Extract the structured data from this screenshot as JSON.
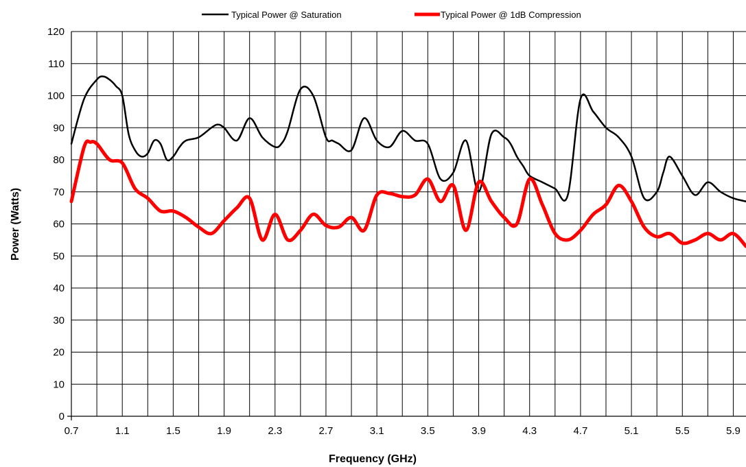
{
  "chart_data": {
    "type": "line",
    "title": "",
    "xlabel": "Frequency (GHz)",
    "ylabel": "Power (Watts)",
    "xlim": [
      0.7,
      6.0
    ],
    "ylim": [
      0,
      120
    ],
    "x_ticks": [
      "0.7",
      "1.1",
      "1.5",
      "1.9",
      "2.3",
      "2.7",
      "3.1",
      "3.5",
      "3.9",
      "4.3",
      "4.7",
      "5.1",
      "5.5",
      "5.9"
    ],
    "x_tick_values": [
      0.7,
      1.1,
      1.5,
      1.9,
      2.3,
      2.7,
      3.1,
      3.5,
      3.9,
      4.3,
      4.7,
      5.1,
      5.5,
      5.9
    ],
    "x_grid_step": 0.2,
    "y_ticks": [
      "0",
      "10",
      "20",
      "30",
      "40",
      "50",
      "60",
      "70",
      "80",
      "90",
      "100",
      "110",
      "120"
    ],
    "y_tick_values": [
      0,
      10,
      20,
      30,
      40,
      50,
      60,
      70,
      80,
      90,
      100,
      110,
      120
    ],
    "grid": true,
    "legend_position": "top",
    "series": [
      {
        "name": "Typical Power @ Saturation",
        "color": "#000000",
        "x": [
          0.7,
          0.8,
          0.9,
          0.95,
          1.0,
          1.05,
          1.1,
          1.15,
          1.2,
          1.25,
          1.3,
          1.35,
          1.4,
          1.45,
          1.5,
          1.55,
          1.6,
          1.7,
          1.8,
          1.85,
          1.9,
          2.0,
          2.1,
          2.2,
          2.3,
          2.35,
          2.4,
          2.5,
          2.6,
          2.7,
          2.75,
          2.8,
          2.9,
          3.0,
          3.1,
          3.2,
          3.3,
          3.4,
          3.5,
          3.6,
          3.7,
          3.8,
          3.9,
          4.0,
          4.1,
          4.15,
          4.2,
          4.25,
          4.3,
          4.4,
          4.5,
          4.6,
          4.7,
          4.8,
          4.9,
          5.0,
          5.1,
          5.2,
          5.3,
          5.35,
          5.4,
          5.5,
          5.6,
          5.7,
          5.8,
          5.9,
          6.0
        ],
        "y": [
          85,
          99,
          105,
          106,
          105,
          103,
          100,
          88,
          83,
          81,
          82,
          86,
          85,
          80,
          81,
          84,
          86,
          87,
          90,
          91,
          90,
          86,
          93,
          87,
          84,
          85,
          89,
          102,
          100,
          87,
          86,
          85,
          83,
          93,
          86,
          84,
          89,
          86,
          85,
          74,
          76,
          86,
          70,
          88,
          87,
          85,
          81,
          78,
          75,
          73,
          71,
          69,
          99,
          95,
          90,
          87,
          81,
          68,
          70,
          76,
          81,
          75,
          69,
          73,
          70,
          68,
          67
        ]
      },
      {
        "name": "Typical Power @ 1dB Compression",
        "color": "#ff0000",
        "x": [
          0.7,
          0.8,
          0.85,
          0.9,
          1.0,
          1.1,
          1.2,
          1.3,
          1.4,
          1.5,
          1.6,
          1.7,
          1.8,
          1.9,
          2.0,
          2.1,
          2.2,
          2.3,
          2.4,
          2.5,
          2.6,
          2.7,
          2.8,
          2.9,
          3.0,
          3.1,
          3.2,
          3.3,
          3.4,
          3.5,
          3.6,
          3.7,
          3.8,
          3.9,
          4.0,
          4.1,
          4.2,
          4.3,
          4.4,
          4.5,
          4.6,
          4.7,
          4.8,
          4.9,
          5.0,
          5.1,
          5.2,
          5.3,
          5.4,
          5.5,
          5.6,
          5.7,
          5.8,
          5.9,
          6.0
        ],
        "y": [
          67,
          84,
          85.5,
          85,
          80,
          79,
          71,
          68,
          64,
          64,
          62,
          59,
          57,
          61,
          65,
          68,
          55,
          63,
          55,
          58,
          63,
          59.5,
          59,
          62,
          58,
          69,
          69.5,
          68.5,
          69,
          74,
          67,
          72,
          58,
          73,
          67,
          62,
          60,
          74,
          66,
          57,
          55,
          58,
          63,
          66,
          72,
          67,
          59,
          56,
          57,
          54,
          55,
          57,
          55,
          57,
          53
        ]
      }
    ]
  }
}
